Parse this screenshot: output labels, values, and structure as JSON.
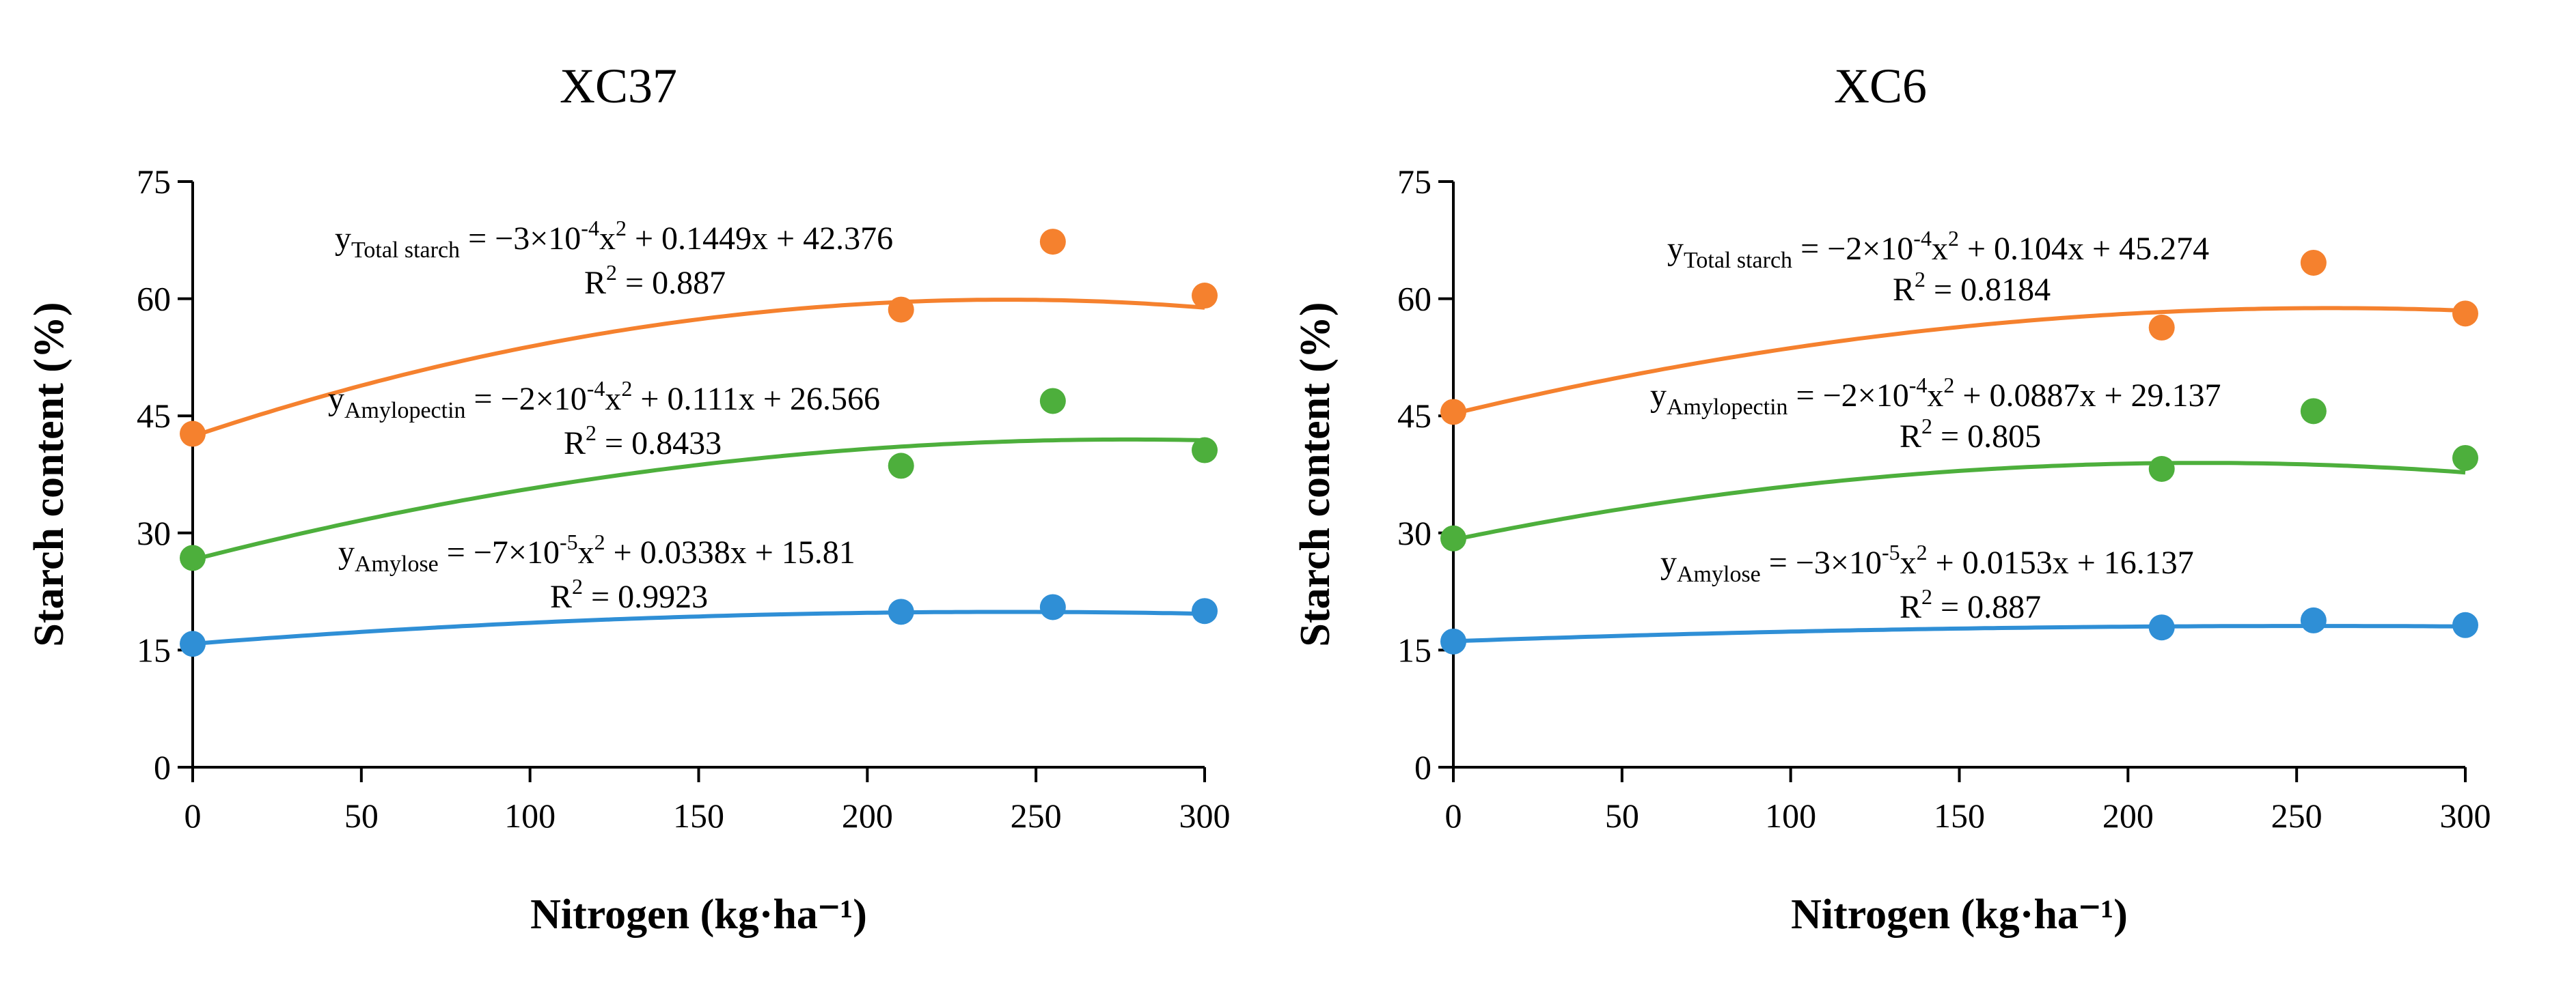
{
  "chart_data": [
    {
      "type": "scatter",
      "title": "XC37",
      "xlabel": "Nitrogen (kg·ha⁻¹)",
      "ylabel": "Starch content (%)",
      "xlim": [
        0,
        300
      ],
      "ylim": [
        0,
        75
      ],
      "xticks": [
        0,
        50,
        100,
        150,
        200,
        250,
        300
      ],
      "yticks": [
        0,
        15,
        30,
        45,
        60,
        75
      ],
      "grid": false,
      "series": [
        {
          "name": "Total starch",
          "color": "#F5812E",
          "x": [
            0,
            210,
            255,
            300
          ],
          "y": [
            42.7,
            58.6,
            67.3,
            60.4
          ],
          "fit": [
            -0.0003,
            0.1449,
            42.376
          ],
          "equation": {
            "prefix": "y",
            "sub": "Total starch",
            "mid1": " = −3×10",
            "sup1": "-4",
            "mid2": "x",
            "sup2": "2",
            "rest": " + 0.1449x + 42.376",
            "r2_prefix": "R",
            "r2_sup": "2",
            "r2_value": " = 0.887"
          }
        },
        {
          "name": "Amylopectin",
          "color": "#4DAF3C",
          "x": [
            0,
            210,
            255,
            300
          ],
          "y": [
            26.8,
            38.6,
            46.9,
            40.6
          ],
          "fit": [
            -0.0002,
            0.111,
            26.566
          ],
          "equation": {
            "prefix": "y",
            "sub": "Amylopectin",
            "mid1": " = −2×10",
            "sup1": "-4",
            "mid2": "x",
            "sup2": "2",
            "rest": " + 0.111x + 26.566",
            "r2_prefix": "R",
            "r2_sup": "2",
            "r2_value": " = 0.8433"
          }
        },
        {
          "name": "Amylose",
          "color": "#2F8FD6",
          "x": [
            0,
            210,
            255,
            300
          ],
          "y": [
            15.8,
            19.9,
            20.5,
            20.0
          ],
          "fit": [
            -7e-05,
            0.0338,
            15.81
          ],
          "equation": {
            "prefix": "y",
            "sub": "Amylose",
            "mid1": " = −7×10",
            "sup1": "-5",
            "mid2": "x",
            "sup2": "2",
            "rest": " + 0.0338x + 15.81",
            "r2_prefix": "R",
            "r2_sup": "2",
            "r2_value": " = 0.9923"
          }
        }
      ]
    },
    {
      "type": "scatter",
      "title": "XC6",
      "xlabel": "Nitrogen (kg·ha⁻¹)",
      "ylabel": "Starch content (%)",
      "xlim": [
        0,
        300
      ],
      "ylim": [
        0,
        75
      ],
      "xticks": [
        0,
        50,
        100,
        150,
        200,
        250,
        300
      ],
      "yticks": [
        0,
        15,
        30,
        45,
        60,
        75
      ],
      "grid": false,
      "series": [
        {
          "name": "Total starch",
          "color": "#F5812E",
          "x": [
            0,
            210,
            255,
            300
          ],
          "y": [
            45.5,
            56.3,
            64.6,
            58.1
          ],
          "fit": [
            -0.0002,
            0.104,
            45.274
          ],
          "equation": {
            "prefix": "y",
            "sub": "Total starch",
            "mid1": " = −2×10",
            "sup1": "-4",
            "mid2": "x",
            "sup2": "2",
            "rest": " + 0.104x + 45.274",
            "r2_prefix": "R",
            "r2_sup": "2",
            "r2_value": " = 0.8184"
          }
        },
        {
          "name": "Amylopectin",
          "color": "#4DAF3C",
          "x": [
            0,
            210,
            255,
            300
          ],
          "y": [
            29.3,
            38.2,
            45.6,
            39.6
          ],
          "fit": [
            -0.0002,
            0.0887,
            29.137
          ],
          "equation": {
            "prefix": "y",
            "sub": "Amylopectin",
            "mid1": " = −2×10",
            "sup1": "-4",
            "mid2": "x",
            "sup2": "2",
            "rest": " + 0.0887x + 29.137",
            "r2_prefix": "R",
            "r2_sup": "2",
            "r2_value": " = 0.805"
          }
        },
        {
          "name": "Amylose",
          "color": "#2F8FD6",
          "x": [
            0,
            210,
            255,
            300
          ],
          "y": [
            16.1,
            17.9,
            18.8,
            18.2
          ],
          "fit": [
            -3e-05,
            0.0153,
            16.137
          ],
          "equation": {
            "prefix": "y",
            "sub": "Amylose",
            "mid1": " = −3×10",
            "sup1": "-5",
            "mid2": "x",
            "sup2": "2",
            "rest": " + 0.0153x + 16.137",
            "r2_prefix": "R",
            "r2_sup": "2",
            "r2_value": " = 0.887"
          }
        }
      ]
    }
  ]
}
